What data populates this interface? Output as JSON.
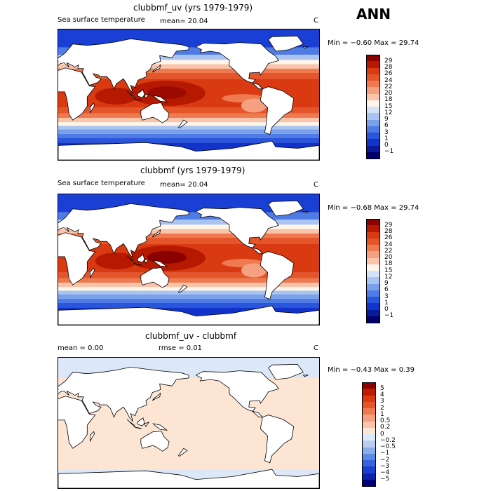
{
  "season": "ANN",
  "panels": [
    {
      "title": "clubbmf_uv (yrs 1979-1979)",
      "field": "Sea surface temperature",
      "stat_left": "mean=   20.04",
      "units": "C",
      "minmax": "Min =  −0.60 Max =   29.74",
      "levels": [
        "29",
        "28",
        "26",
        "24",
        "22",
        "20",
        "18",
        "15",
        "12",
        "9",
        "6",
        "3",
        "1",
        "0",
        "−1"
      ],
      "colors": [
        "#8b0000",
        "#b51a00",
        "#d93a12",
        "#e5552a",
        "#ef7a50",
        "#f5a080",
        "#f9c4aa",
        "#fff5e8",
        "#d4e2f7",
        "#a9c4f0",
        "#7aa0ea",
        "#4f7be5",
        "#2a56de",
        "#1133c9",
        "#0a1a9a",
        "#00006a"
      ]
    },
    {
      "title": "clubbmf (yrs 1979-1979)",
      "field": "Sea surface temperature",
      "stat_left": "mean=   20.04",
      "units": "C",
      "minmax": "Min =  −0.68 Max =   29.74",
      "levels": [
        "29",
        "28",
        "26",
        "24",
        "22",
        "20",
        "18",
        "15",
        "12",
        "9",
        "6",
        "3",
        "1",
        "0",
        "−1"
      ],
      "colors": [
        "#8b0000",
        "#b51a00",
        "#d93a12",
        "#e5552a",
        "#ef7a50",
        "#f5a080",
        "#f9c4aa",
        "#fff5e8",
        "#d4e2f7",
        "#a9c4f0",
        "#7aa0ea",
        "#4f7be5",
        "#2a56de",
        "#1133c9",
        "#0a1a9a",
        "#00006a"
      ]
    },
    {
      "title": "clubbmf_uv - clubbmf",
      "stat_left": "mean =    0.00",
      "stat_mid": "rmse =    0.01",
      "units": "C",
      "minmax": "Min =  −0.43 Max =    0.39",
      "levels": [
        "5",
        "4",
        "3",
        "2",
        "1",
        "0.5",
        "0.2",
        "0",
        "−0.2",
        "−0.5",
        "−1",
        "−2",
        "−3",
        "−4",
        "−5"
      ],
      "colors": [
        "#8b0000",
        "#c01a00",
        "#d93a12",
        "#e5552a",
        "#ef7a50",
        "#f5a080",
        "#f9c4aa",
        "#fde5d4",
        "#dce8f8",
        "#b8cdf2",
        "#8aaeeb",
        "#5d8ae5",
        "#3664df",
        "#1c3fcf",
        "#0d22a8",
        "#00007a"
      ]
    }
  ]
}
